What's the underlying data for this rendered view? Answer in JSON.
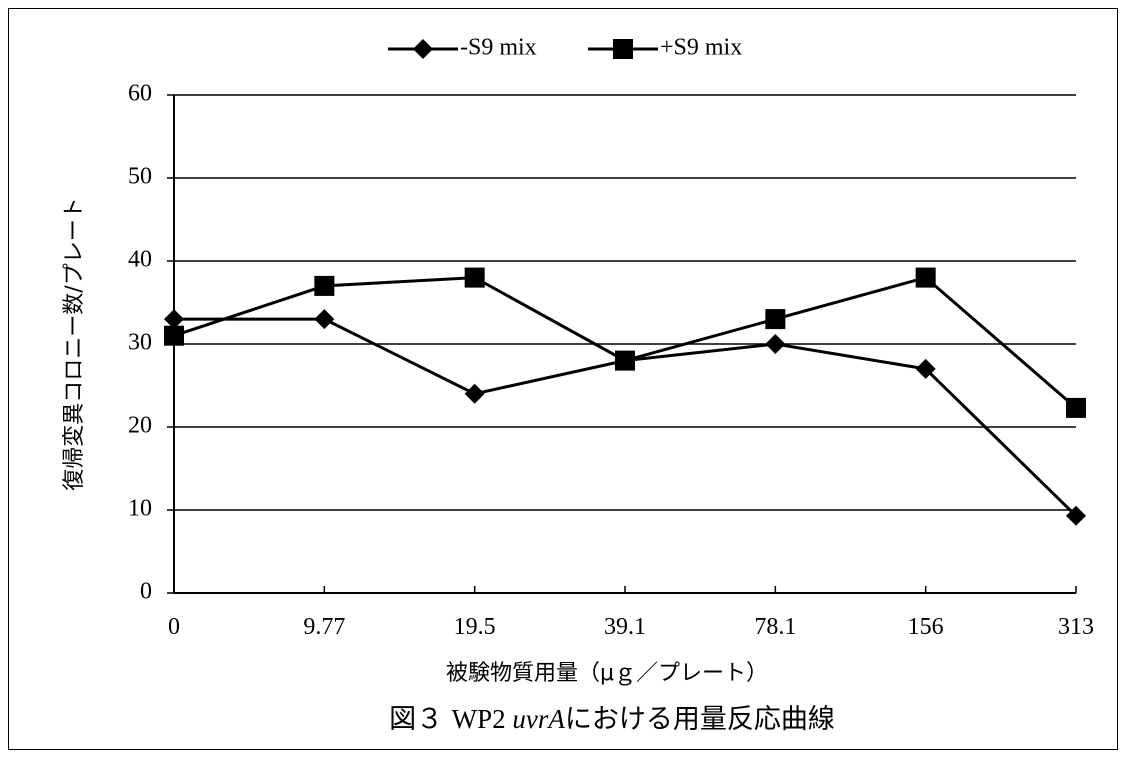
{
  "chart_data": {
    "type": "line",
    "categories": [
      "0",
      "9.77",
      "19.5",
      "39.1",
      "78.1",
      "156",
      "313"
    ],
    "series": [
      {
        "name": "-S9 mix",
        "marker": "diamond",
        "color": "#000000",
        "values": [
          33,
          33,
          24,
          28,
          30,
          27,
          9.3
        ]
      },
      {
        "name": "+S9 mix",
        "marker": "square",
        "color": "#000000",
        "values": [
          31,
          37,
          38,
          28,
          33,
          38,
          22.3
        ]
      }
    ],
    "ylim": [
      0,
      60
    ],
    "yticks": [
      "0",
      "10",
      "20",
      "30",
      "40",
      "50",
      "60"
    ],
    "ylabel": "復帰変異コロニー数/プレート",
    "xlabel": "被験物質用量（μｇ／プレート）",
    "caption": {
      "prefix": "図３ ",
      "strain": "WP2 ",
      "gene": "uvrA",
      "suffix": "における用量反応曲線"
    },
    "grid": true,
    "legend_position": "top"
  }
}
